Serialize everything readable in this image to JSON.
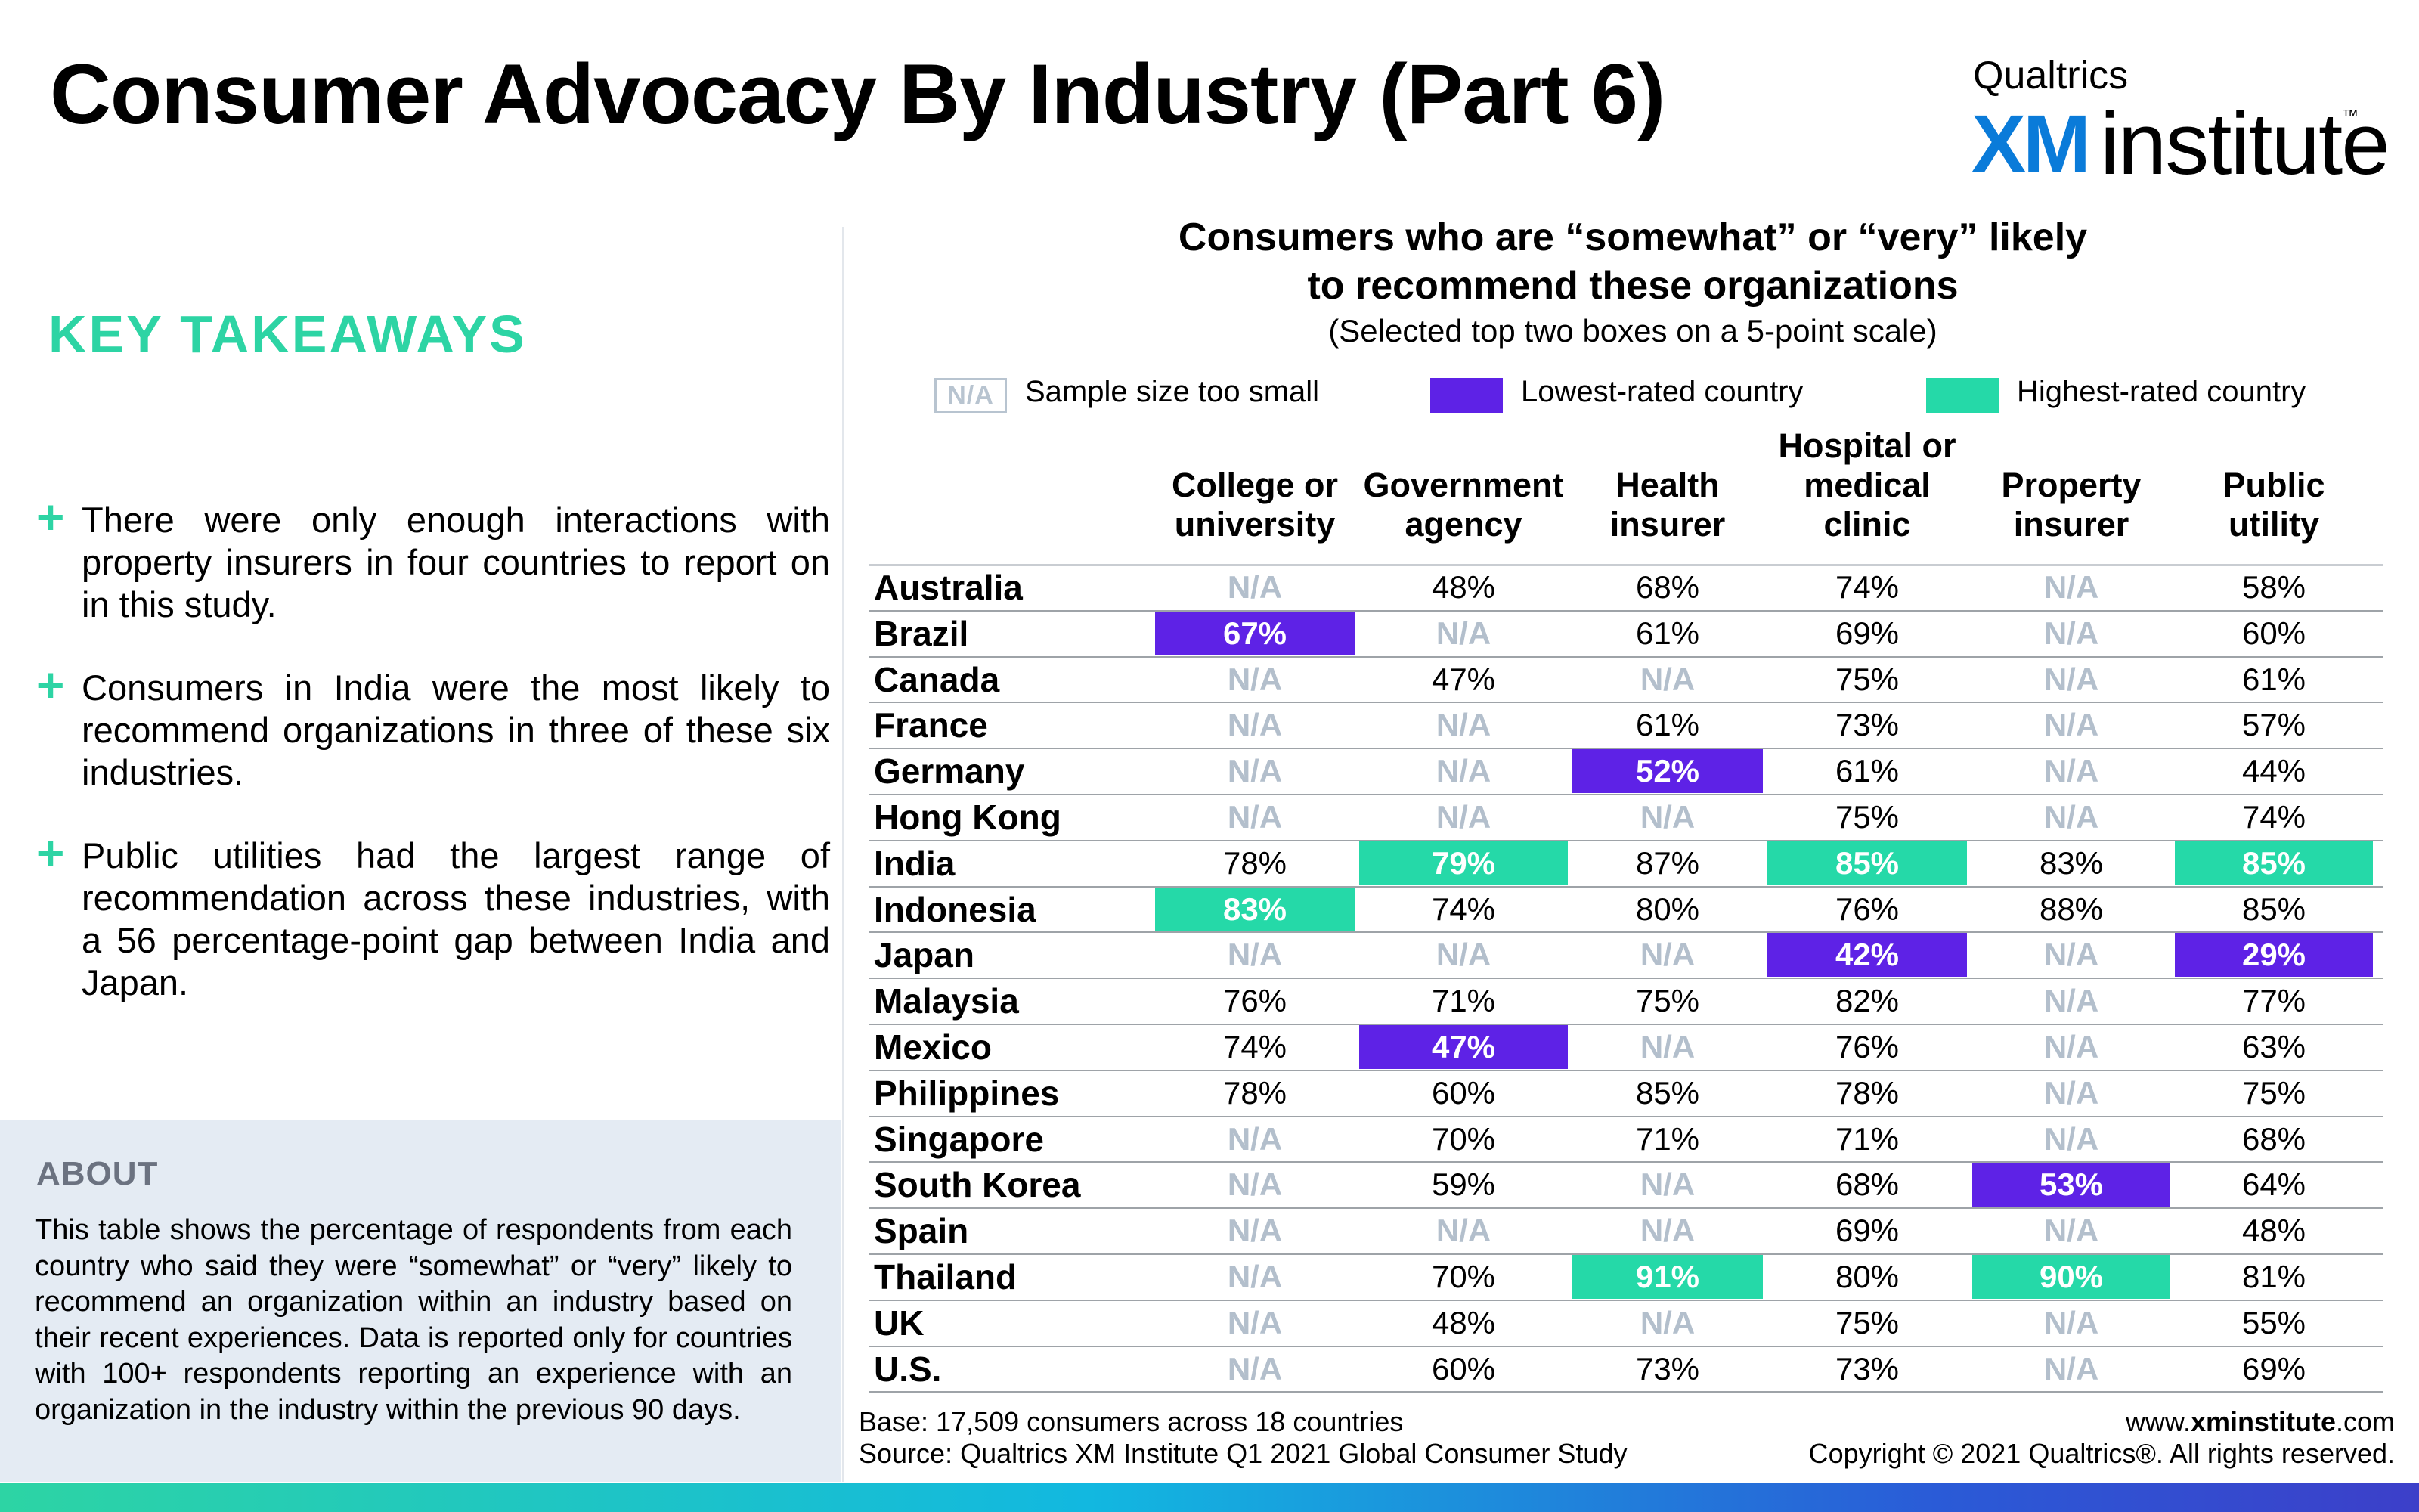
{
  "title": "Consumer Advocacy By Industry (Part 6)",
  "logo": {
    "top": "Qualtrics",
    "xm": "XM",
    "institute": "institute",
    "tm": "™"
  },
  "key_takeaways": {
    "heading": "KEY TAKEAWAYS",
    "bullets": [
      "There were only enough interactions with property insurers in four countries to report on in this study.",
      "Consumers in India were the most likely to recommend organizations in three of these six industries.",
      "Public utilities had the largest range of recommendation across these industries, with a 56 percentage-point gap between India and Japan."
    ]
  },
  "about": {
    "heading": "ABOUT",
    "text": "This table shows the percentage of respondents from each country who said they were “somewhat” or “very” likely to recommend an organization within an industry based on their recent experiences. Data is reported only for countries with 100+ respondents reporting an experience with an organization in the industry within the previous 90 days."
  },
  "chart_title": {
    "line1": "Consumers who are “somewhat” or “very” likely",
    "line2": "to recommend these organizations",
    "subtitle": "(Selected top two boxes on a 5-point scale)"
  },
  "legend": {
    "na_box": "N/A",
    "na_label": "Sample size too small",
    "low_label": "Lowest-rated country",
    "high_label": "Highest-rated country"
  },
  "footer": {
    "base": "Base: 17,509 consumers across 18 countries",
    "source": "Source: Qualtrics XM Institute Q1 2021 Global Consumer Study",
    "url_prefix": "www.",
    "url_bold": "xminstitute",
    "url_suffix": ".com",
    "copyright": "Copyright © 2021 Qualtrics®. All rights reserved."
  },
  "colors": {
    "low": "#5e22e6",
    "high": "#25d9a8",
    "na": "#b3bfcc",
    "accent": "#2dd4a4"
  },
  "chart_data": {
    "type": "table",
    "columns": [
      [
        "College or",
        "university"
      ],
      [
        "Government",
        "agency"
      ],
      [
        "Health",
        "insurer"
      ],
      [
        "Hospital or",
        "medical",
        "clinic"
      ],
      [
        "Property",
        "insurer"
      ],
      [
        "Public",
        "utility"
      ]
    ],
    "rows": [
      {
        "country": "Australia",
        "values": [
          "N/A",
          "48%",
          "68%",
          "74%",
          "N/A",
          "58%"
        ],
        "highlight": [
          null,
          null,
          null,
          null,
          null,
          null
        ]
      },
      {
        "country": "Brazil",
        "values": [
          "67%",
          "N/A",
          "61%",
          "69%",
          "N/A",
          "60%"
        ],
        "highlight": [
          "low",
          null,
          null,
          null,
          null,
          null
        ]
      },
      {
        "country": "Canada",
        "values": [
          "N/A",
          "47%",
          "N/A",
          "75%",
          "N/A",
          "61%"
        ],
        "highlight": [
          null,
          null,
          null,
          null,
          null,
          null
        ]
      },
      {
        "country": "France",
        "values": [
          "N/A",
          "N/A",
          "61%",
          "73%",
          "N/A",
          "57%"
        ],
        "highlight": [
          null,
          null,
          null,
          null,
          null,
          null
        ]
      },
      {
        "country": "Germany",
        "values": [
          "N/A",
          "N/A",
          "52%",
          "61%",
          "N/A",
          "44%"
        ],
        "highlight": [
          null,
          null,
          "low",
          null,
          null,
          null
        ]
      },
      {
        "country": "Hong Kong",
        "values": [
          "N/A",
          "N/A",
          "N/A",
          "75%",
          "N/A",
          "74%"
        ],
        "highlight": [
          null,
          null,
          null,
          null,
          null,
          null
        ]
      },
      {
        "country": "India",
        "values": [
          "78%",
          "79%",
          "87%",
          "85%",
          "83%",
          "85%"
        ],
        "highlight": [
          null,
          "high",
          null,
          "high",
          null,
          "high"
        ]
      },
      {
        "country": "Indonesia",
        "values": [
          "83%",
          "74%",
          "80%",
          "76%",
          "88%",
          "85%"
        ],
        "highlight": [
          "high",
          null,
          null,
          null,
          null,
          null
        ]
      },
      {
        "country": "Japan",
        "values": [
          "N/A",
          "N/A",
          "N/A",
          "42%",
          "N/A",
          "29%"
        ],
        "highlight": [
          null,
          null,
          null,
          "low",
          null,
          "low"
        ]
      },
      {
        "country": "Malaysia",
        "values": [
          "76%",
          "71%",
          "75%",
          "82%",
          "N/A",
          "77%"
        ],
        "highlight": [
          null,
          null,
          null,
          null,
          null,
          null
        ]
      },
      {
        "country": "Mexico",
        "values": [
          "74%",
          "47%",
          "N/A",
          "76%",
          "N/A",
          "63%"
        ],
        "highlight": [
          null,
          "low",
          null,
          null,
          null,
          null
        ]
      },
      {
        "country": "Philippines",
        "values": [
          "78%",
          "60%",
          "85%",
          "78%",
          "N/A",
          "75%"
        ],
        "highlight": [
          null,
          null,
          null,
          null,
          null,
          null
        ]
      },
      {
        "country": "Singapore",
        "values": [
          "N/A",
          "70%",
          "71%",
          "71%",
          "N/A",
          "68%"
        ],
        "highlight": [
          null,
          null,
          null,
          null,
          null,
          null
        ]
      },
      {
        "country": "South Korea",
        "values": [
          "N/A",
          "59%",
          "N/A",
          "68%",
          "53%",
          "64%"
        ],
        "highlight": [
          null,
          null,
          null,
          null,
          "low",
          null
        ]
      },
      {
        "country": "Spain",
        "values": [
          "N/A",
          "N/A",
          "N/A",
          "69%",
          "N/A",
          "48%"
        ],
        "highlight": [
          null,
          null,
          null,
          null,
          null,
          null
        ]
      },
      {
        "country": "Thailand",
        "values": [
          "N/A",
          "70%",
          "91%",
          "80%",
          "90%",
          "81%"
        ],
        "highlight": [
          null,
          null,
          "high",
          null,
          "high",
          null
        ]
      },
      {
        "country": "UK",
        "values": [
          "N/A",
          "48%",
          "N/A",
          "75%",
          "N/A",
          "55%"
        ],
        "highlight": [
          null,
          null,
          null,
          null,
          null,
          null
        ]
      },
      {
        "country": "U.S.",
        "values": [
          "N/A",
          "60%",
          "73%",
          "73%",
          "N/A",
          "69%"
        ],
        "highlight": [
          null,
          null,
          null,
          null,
          null,
          null
        ]
      }
    ]
  }
}
